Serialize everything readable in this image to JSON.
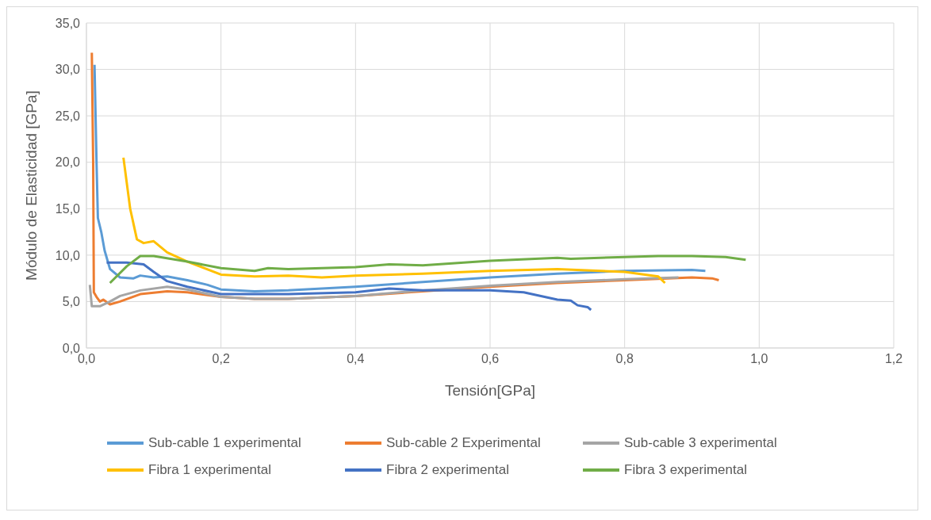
{
  "chart_data": {
    "type": "line",
    "xlabel": "Tensión[GPa]",
    "ylabel": "Módulo de Elasticidad [GPa]",
    "xlim": [
      0,
      1.2
    ],
    "ylim": [
      0,
      35
    ],
    "xticks": [
      {
        "value": 0,
        "label": "0,0"
      },
      {
        "value": 0.2,
        "label": "0,2"
      },
      {
        "value": 0.4,
        "label": "0,4"
      },
      {
        "value": 0.6,
        "label": "0,6"
      },
      {
        "value": 0.8,
        "label": "0,8"
      },
      {
        "value": 1.0,
        "label": "1,0"
      },
      {
        "value": 1.2,
        "label": "1,2"
      }
    ],
    "yticks": [
      {
        "value": 0,
        "label": "0,0"
      },
      {
        "value": 5,
        "label": "5,0"
      },
      {
        "value": 10,
        "label": "10,0"
      },
      {
        "value": 15,
        "label": "15,0"
      },
      {
        "value": 20,
        "label": "20,0"
      },
      {
        "value": 25,
        "label": "25,0"
      },
      {
        "value": 30,
        "label": "30,0"
      },
      {
        "value": 35,
        "label": "35,0"
      }
    ],
    "grid": true,
    "legend": "bottom",
    "marker": "none",
    "line_style": "solid",
    "series": [
      {
        "name": "Sub-cable 1 experimental",
        "color": "#5b9bd5",
        "x": [
          0.012,
          0.015,
          0.017,
          0.022,
          0.027,
          0.035,
          0.05,
          0.07,
          0.08,
          0.1,
          0.12,
          0.15,
          0.18,
          0.2,
          0.25,
          0.3,
          0.4,
          0.5,
          0.6,
          0.7,
          0.8,
          0.9,
          0.92
        ],
        "values": [
          30.5,
          20,
          14,
          12.5,
          10.5,
          8.5,
          7.6,
          7.5,
          7.8,
          7.6,
          7.7,
          7.3,
          6.8,
          6.3,
          6.1,
          6.2,
          6.6,
          7.1,
          7.6,
          8.0,
          8.3,
          8.4,
          8.3
        ]
      },
      {
        "name": "Sub-cable 2 Experimental",
        "color": "#ed7d31",
        "x": [
          0.008,
          0.01,
          0.011,
          0.015,
          0.02,
          0.025,
          0.035,
          0.05,
          0.08,
          0.12,
          0.15,
          0.2,
          0.25,
          0.3,
          0.4,
          0.5,
          0.6,
          0.7,
          0.8,
          0.9,
          0.93,
          0.94
        ],
        "values": [
          31.8,
          20,
          6,
          5.5,
          5.0,
          5.2,
          4.7,
          5.0,
          5.8,
          6.1,
          6.0,
          5.5,
          5.3,
          5.3,
          5.6,
          6.1,
          6.6,
          7.0,
          7.3,
          7.6,
          7.5,
          7.3
        ]
      },
      {
        "name": "Sub-cable 3 experimental",
        "color": "#a5a5a5",
        "x": [
          0.005,
          0.008,
          0.02,
          0.035,
          0.05,
          0.08,
          0.12,
          0.15,
          0.2,
          0.25,
          0.3,
          0.4,
          0.5,
          0.6,
          0.7,
          0.8,
          0.88
        ],
        "values": [
          6.8,
          4.5,
          4.5,
          5.0,
          5.6,
          6.2,
          6.6,
          6.3,
          5.5,
          5.3,
          5.3,
          5.6,
          6.2,
          6.7,
          7.1,
          7.4,
          7.6
        ]
      },
      {
        "name": "Fibra 1 experimental",
        "color": "#ffc000",
        "x": [
          0.055,
          0.065,
          0.075,
          0.085,
          0.1,
          0.12,
          0.15,
          0.2,
          0.25,
          0.3,
          0.35,
          0.4,
          0.5,
          0.6,
          0.7,
          0.8,
          0.85,
          0.86
        ],
        "values": [
          20.5,
          15,
          11.7,
          11.3,
          11.5,
          10.3,
          9.3,
          7.9,
          7.7,
          7.8,
          7.6,
          7.8,
          8.0,
          8.3,
          8.5,
          8.2,
          7.7,
          7.0
        ]
      },
      {
        "name": "Fibra 2 experimental",
        "color": "#4472c4",
        "x": [
          0.03,
          0.06,
          0.085,
          0.1,
          0.12,
          0.15,
          0.2,
          0.3,
          0.4,
          0.45,
          0.5,
          0.6,
          0.65,
          0.7,
          0.72,
          0.73,
          0.745,
          0.75
        ],
        "values": [
          9.2,
          9.2,
          9.0,
          8.2,
          7.2,
          6.6,
          5.8,
          5.8,
          6.0,
          6.4,
          6.2,
          6.2,
          6.0,
          5.2,
          5.1,
          4.6,
          4.4,
          4.1
        ]
      },
      {
        "name": "Fibra 3 experimental",
        "color": "#70ad47",
        "x": [
          0.035,
          0.06,
          0.08,
          0.1,
          0.15,
          0.2,
          0.25,
          0.27,
          0.3,
          0.4,
          0.45,
          0.5,
          0.6,
          0.7,
          0.72,
          0.8,
          0.85,
          0.9,
          0.95,
          0.98
        ],
        "values": [
          7.0,
          8.8,
          9.9,
          9.9,
          9.3,
          8.6,
          8.3,
          8.6,
          8.5,
          8.7,
          9.0,
          8.9,
          9.4,
          9.7,
          9.6,
          9.8,
          9.9,
          9.9,
          9.8,
          9.5
        ]
      }
    ]
  }
}
